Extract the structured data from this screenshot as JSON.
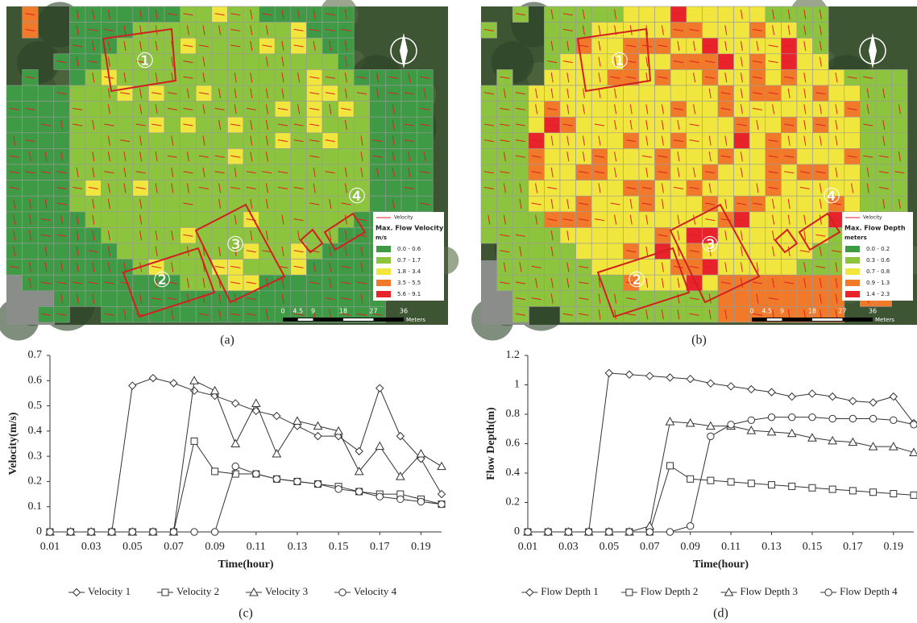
{
  "maps": [
    {
      "caption": "(a)",
      "zones": [
        "①",
        "②",
        "③",
        "④"
      ],
      "legend": {
        "series_label": "Velocity",
        "title": "Max. Flow Velocity",
        "unit": "m/s",
        "classes": [
          {
            "label": "0.0 - 0.6",
            "color": "#3f9a45"
          },
          {
            "label": "0.7 - 1.7",
            "color": "#8dc43e"
          },
          {
            "label": "1.8 - 3.4",
            "color": "#f1e63d"
          },
          {
            "label": "3.5 - 5.5",
            "color": "#f07a2a"
          },
          {
            "label": "5.6 - 9.1",
            "color": "#e8232b"
          }
        ]
      },
      "scale": {
        "ticks": [
          0,
          4.5,
          9,
          18,
          27,
          36
        ],
        "unit": "Meters"
      }
    },
    {
      "caption": "(b)",
      "zones": [
        "①",
        "②",
        "③",
        "④"
      ],
      "legend": {
        "series_label": "Velocity",
        "title": "Max. Flow Depth",
        "unit": "meters",
        "classes": [
          {
            "label": "0.0 - 0.2",
            "color": "#3f9a45"
          },
          {
            "label": "0.3 - 0.6",
            "color": "#8dc43e"
          },
          {
            "label": "0.7 - 0.8",
            "color": "#f1e63d"
          },
          {
            "label": "0.9 - 1.3",
            "color": "#f07a2a"
          },
          {
            "label": "1.4 - 2.3",
            "color": "#e8232b"
          }
        ]
      },
      "scale": {
        "ticks": [
          0,
          4.5,
          9,
          18,
          27,
          36
        ],
        "unit": "Meters"
      }
    }
  ],
  "chart_data": [
    {
      "type": "line",
      "caption": "(c)",
      "x_label": "Time(hour)",
      "y_label": "Velocity(m/s)",
      "x": [
        0.01,
        0.02,
        0.03,
        0.04,
        0.05,
        0.06,
        0.07,
        0.08,
        0.09,
        0.1,
        0.11,
        0.12,
        0.13,
        0.14,
        0.15,
        0.16,
        0.17,
        0.18,
        0.19,
        0.2
      ],
      "xlim": [
        0.01,
        0.2
      ],
      "xticks": [
        0.01,
        0.03,
        0.05,
        0.07,
        0.09,
        0.11,
        0.13,
        0.15,
        0.17,
        0.19
      ],
      "ylim": [
        0,
        0.7
      ],
      "yticks": [
        0,
        0.1,
        0.2,
        0.3,
        0.4,
        0.5,
        0.6,
        0.7
      ],
      "series": [
        {
          "name": "Velocity 1",
          "color": "#333333",
          "marker": "diamond",
          "values": [
            0,
            0,
            0,
            0,
            0.58,
            0.61,
            0.59,
            0.56,
            0.54,
            0.51,
            0.48,
            0.46,
            0.42,
            0.38,
            0.38,
            0.32,
            0.57,
            0.38,
            0.29,
            0.15
          ]
        },
        {
          "name": "Velocity 2",
          "color": "#333333",
          "marker": "square",
          "values": [
            0,
            0,
            0,
            0,
            0,
            0,
            0,
            0.36,
            0.24,
            0.23,
            0.23,
            0.21,
            0.2,
            0.19,
            0.18,
            0.16,
            0.15,
            0.15,
            0.13,
            0.11
          ]
        },
        {
          "name": "Velocity 3",
          "color": "#333333",
          "marker": "triangle",
          "values": [
            0,
            0,
            0,
            0,
            0,
            0,
            0,
            0.6,
            0.56,
            0.35,
            0.51,
            0.31,
            0.44,
            0.42,
            0.4,
            0.24,
            0.34,
            0.22,
            0.31,
            0.26
          ]
        },
        {
          "name": "Velocity 4",
          "color": "#333333",
          "marker": "circle",
          "values": [
            0,
            0,
            0,
            0,
            0,
            0,
            0,
            0,
            0,
            0.26,
            0.23,
            0.21,
            0.2,
            0.19,
            0.17,
            0.16,
            0.14,
            0.13,
            0.12,
            0.11
          ]
        }
      ]
    },
    {
      "type": "line",
      "caption": "(d)",
      "x_label": "Time(hour)",
      "y_label": "Flow Depth(m)",
      "x": [
        0.01,
        0.02,
        0.03,
        0.04,
        0.05,
        0.06,
        0.07,
        0.08,
        0.09,
        0.1,
        0.11,
        0.12,
        0.13,
        0.14,
        0.15,
        0.16,
        0.17,
        0.18,
        0.19,
        0.2
      ],
      "xlim": [
        0.01,
        0.2
      ],
      "xticks": [
        0.01,
        0.03,
        0.05,
        0.07,
        0.09,
        0.11,
        0.13,
        0.15,
        0.17,
        0.19
      ],
      "ylim": [
        0,
        1.2
      ],
      "yticks": [
        0,
        0.2,
        0.4,
        0.6,
        0.8,
        1,
        1.2
      ],
      "series": [
        {
          "name": "Flow Depth 1",
          "color": "#333333",
          "marker": "diamond",
          "values": [
            0,
            0,
            0,
            0,
            1.08,
            1.07,
            1.06,
            1.05,
            1.04,
            1.01,
            0.99,
            0.97,
            0.95,
            0.92,
            0.94,
            0.92,
            0.89,
            0.88,
            0.92,
            0.74
          ]
        },
        {
          "name": "Flow Depth 2",
          "color": "#333333",
          "marker": "square",
          "values": [
            0,
            0,
            0,
            0,
            0,
            0,
            0,
            0.45,
            0.36,
            0.35,
            0.34,
            0.33,
            0.32,
            0.31,
            0.3,
            0.29,
            0.28,
            0.27,
            0.26,
            0.25
          ]
        },
        {
          "name": "Flow Depth 3",
          "color": "#333333",
          "marker": "triangle",
          "values": [
            0,
            0,
            0,
            0,
            0,
            0,
            0.04,
            0.75,
            0.74,
            0.72,
            0.72,
            0.69,
            0.68,
            0.67,
            0.64,
            0.62,
            0.61,
            0.58,
            0.58,
            0.54
          ]
        },
        {
          "name": "Flow Depth 4",
          "color": "#333333",
          "marker": "circle",
          "values": [
            0,
            0,
            0,
            0,
            0,
            0,
            0,
            0,
            0.04,
            0.65,
            0.73,
            0.76,
            0.78,
            0.78,
            0.78,
            0.77,
            0.77,
            0.77,
            0.76,
            0.73
          ]
        }
      ]
    }
  ]
}
